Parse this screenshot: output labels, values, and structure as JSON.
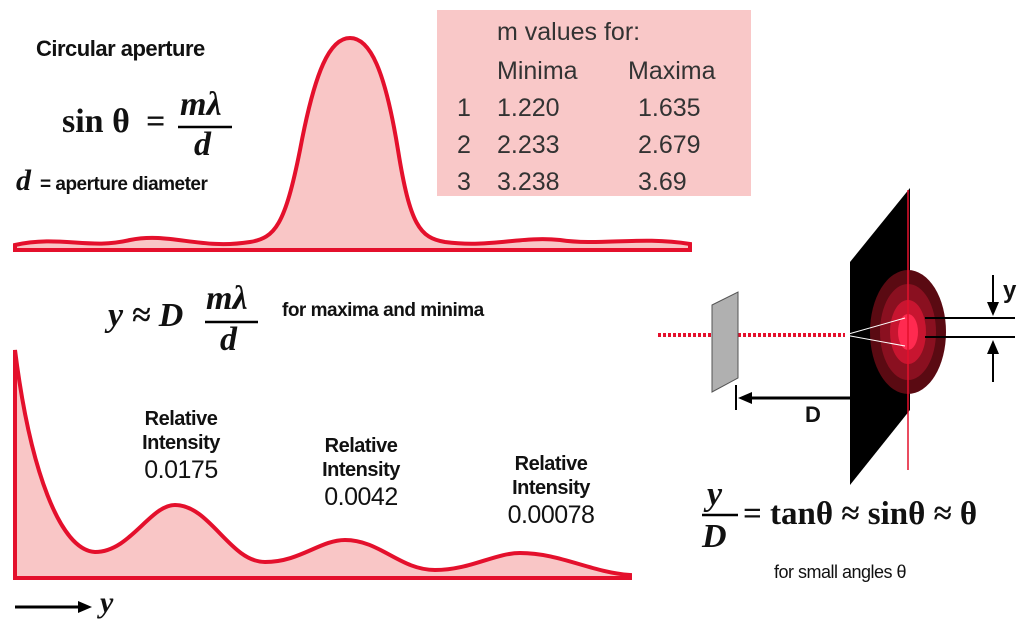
{
  "title": "Circular aperture",
  "formula_top": {
    "lhs": "sin θ",
    "eq": "=",
    "num": "mλ",
    "den": "d"
  },
  "diameter_note": {
    "symbol": "d",
    "text": "= aperture diameter"
  },
  "table": {
    "caption": "m values for:",
    "header": [
      "Minima",
      "Maxima"
    ],
    "rows": [
      [
        "1",
        "1.220",
        "1.635"
      ],
      [
        "2",
        "2.233",
        "2.679"
      ],
      [
        "3",
        "3.238",
        "3.69"
      ]
    ]
  },
  "formula_mid": {
    "lhs": "y ≈ D",
    "num": "mλ",
    "den": "d",
    "note": "for maxima and minima"
  },
  "peaks": [
    {
      "label": "Relative Intensity",
      "value": "0.0175"
    },
    {
      "label": "Relative Intensity",
      "value": "0.0042"
    },
    {
      "label": "Relative Intensity",
      "value": "0.00078"
    }
  ],
  "axis_label": "y",
  "diagram": {
    "y_label": "y",
    "distance_label": "D"
  },
  "formula_bottom": {
    "num": "y",
    "den": "D",
    "rhs": "= tanθ ≈ sinθ ≈ θ",
    "note": "for small angles θ"
  }
}
